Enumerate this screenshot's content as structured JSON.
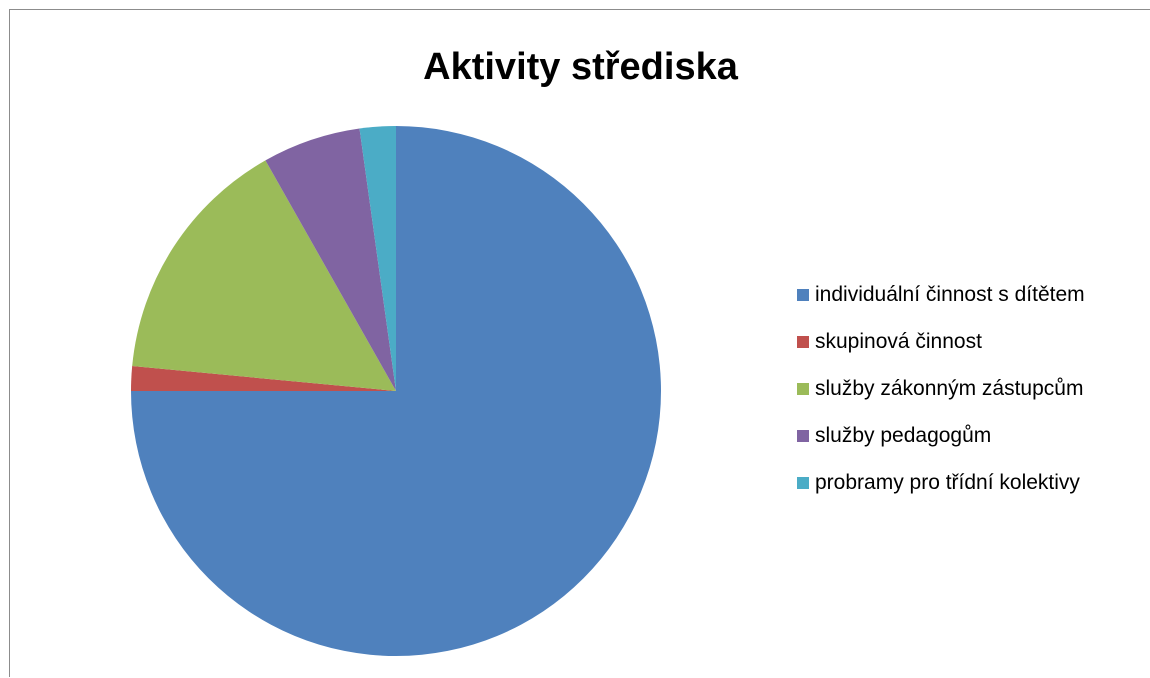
{
  "chart_data": {
    "type": "pie",
    "title": "Aktivity střediska",
    "legend_position": "right",
    "start_angle_deg": 0,
    "direction": "clockwise",
    "slices": [
      {
        "label": "individuální činnost s dítětem",
        "value": 75.0,
        "color": "#4f81bd"
      },
      {
        "label": "skupinová činnost",
        "value": 1.5,
        "color": "#c0504d"
      },
      {
        "label": "služby zákonným zástupcům",
        "value": 15.3,
        "color": "#9bbb59"
      },
      {
        "label": "služby pedagogům",
        "value": 6.0,
        "color": "#8064a2"
      },
      {
        "label": "probramy pro třídní kolektivy",
        "value": 2.2,
        "color": "#4bacc6"
      }
    ]
  }
}
